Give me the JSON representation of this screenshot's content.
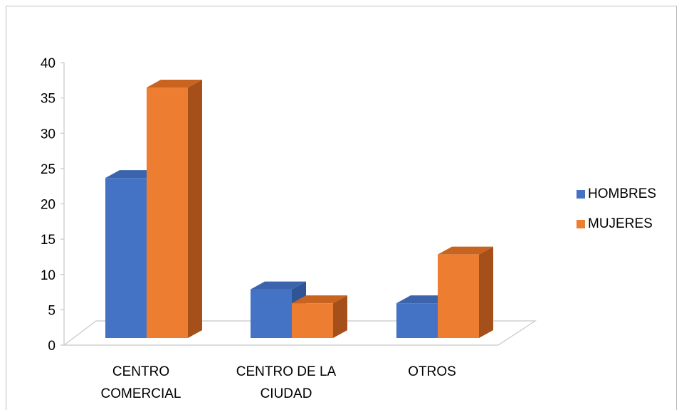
{
  "chart_data": {
    "type": "bar",
    "style": "3d-clustered-column",
    "categories": [
      [
        "CENTRO",
        "COMERCIAL"
      ],
      [
        "CENTRO DE LA",
        "CIUDAD"
      ],
      [
        "OTROS"
      ]
    ],
    "series": [
      {
        "name": "HOMBRES",
        "values": [
          23,
          7,
          5
        ],
        "color": "#4472C4",
        "side_color": "#2F5597",
        "top_color": "#3B64AD"
      },
      {
        "name": "MUJERES",
        "values": [
          36,
          5,
          12
        ],
        "color": "#ED7D31",
        "side_color": "#A5501B",
        "top_color": "#C8641F"
      }
    ],
    "y_ticks": [
      "0",
      "5",
      "10",
      "15",
      "20",
      "25",
      "30",
      "35",
      "40"
    ],
    "ylim": [
      0,
      40
    ],
    "grid": false,
    "legend_position": "right"
  }
}
